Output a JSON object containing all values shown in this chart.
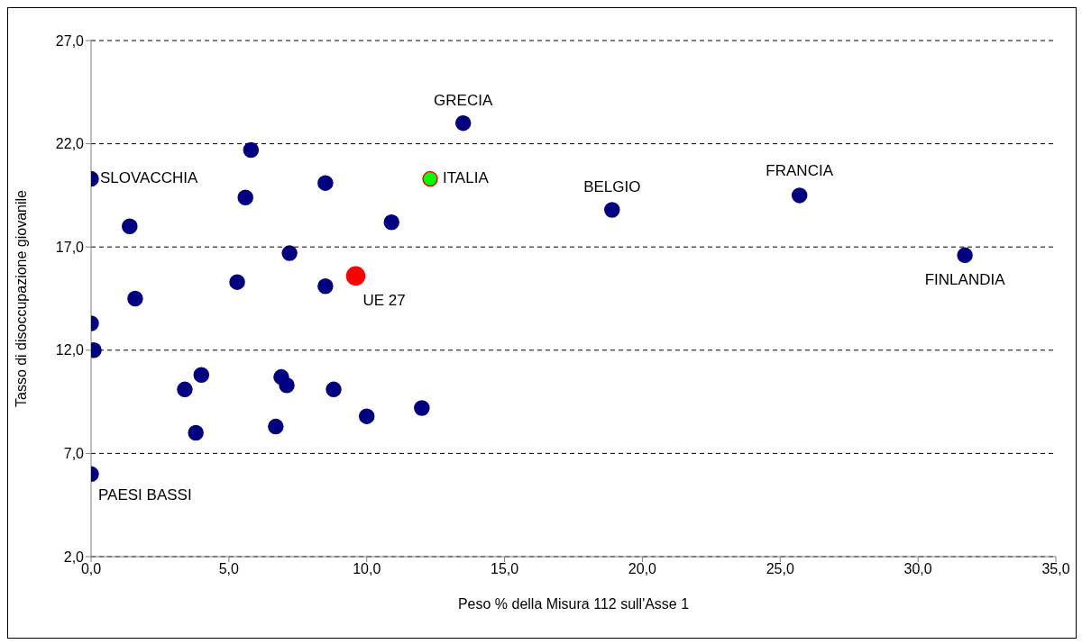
{
  "chart_data": {
    "type": "scatter",
    "xlabel": "Peso % della Misura 112 sull'Asse 1",
    "ylabel": "Tasso di disoccupazione giovanile",
    "xlim": [
      0,
      35
    ],
    "ylim": [
      2,
      27
    ],
    "xticks": [
      {
        "value": 0,
        "label": "0,0"
      },
      {
        "value": 5,
        "label": "5,0"
      },
      {
        "value": 10,
        "label": "10,0"
      },
      {
        "value": 15,
        "label": "15,0"
      },
      {
        "value": 20,
        "label": "20,0"
      },
      {
        "value": 25,
        "label": "25,0"
      },
      {
        "value": 30,
        "label": "30,0"
      },
      {
        "value": 35,
        "label": "35,0"
      }
    ],
    "yticks": [
      {
        "value": 2,
        "label": "2,0"
      },
      {
        "value": 7,
        "label": "7,0"
      },
      {
        "value": 12,
        "label": "12,0"
      },
      {
        "value": 17,
        "label": "17,0"
      },
      {
        "value": 22,
        "label": "22,0"
      },
      {
        "value": 27,
        "label": "27,0"
      }
    ],
    "grid": "y",
    "legend": false,
    "marker": "circle",
    "series": [
      {
        "color": "#000080",
        "x": [
          0,
          5.8,
          5.6,
          8.5,
          1.4,
          10.9,
          13.5,
          18.9,
          25.7,
          31.7,
          7.2,
          5.3,
          8.5,
          1.6,
          0,
          0.1,
          4.0,
          6.9,
          3.4,
          7.1,
          8.8,
          10.0,
          12.0,
          3.8,
          6.7,
          0
        ],
        "values": [
          20.3,
          21.7,
          19.4,
          20.1,
          18.0,
          18.2,
          23.0,
          18.8,
          19.5,
          16.6,
          16.7,
          15.3,
          15.1,
          14.5,
          13.3,
          12.0,
          10.8,
          10.7,
          10.1,
          10.3,
          10.1,
          8.8,
          9.2,
          8.0,
          8.3,
          6.0
        ]
      },
      {
        "color": "#ff0000",
        "x": [
          9.6
        ],
        "values": [
          15.6
        ]
      },
      {
        "color": "#00ff00",
        "x": [
          12.3
        ],
        "values": [
          20.3
        ]
      }
    ],
    "annotations": [
      {
        "text": "GRECIA",
        "x": 13.5,
        "y": 23.0
      },
      {
        "text": "ITALIA",
        "x": 12.3,
        "y": 20.3
      },
      {
        "text": "BELGIO",
        "x": 18.9,
        "y": 18.8
      },
      {
        "text": "FRANCIA",
        "x": 25.7,
        "y": 19.5
      },
      {
        "text": "FINLANDIA",
        "x": 31.7,
        "y": 16.6
      },
      {
        "text": "UE 27",
        "x": 9.6,
        "y": 15.6
      },
      {
        "text": "SLOVACCHIA",
        "x": 0,
        "y": 20.3
      },
      {
        "text": "PAESI BASSI",
        "x": 0,
        "y": 6.0
      }
    ]
  }
}
